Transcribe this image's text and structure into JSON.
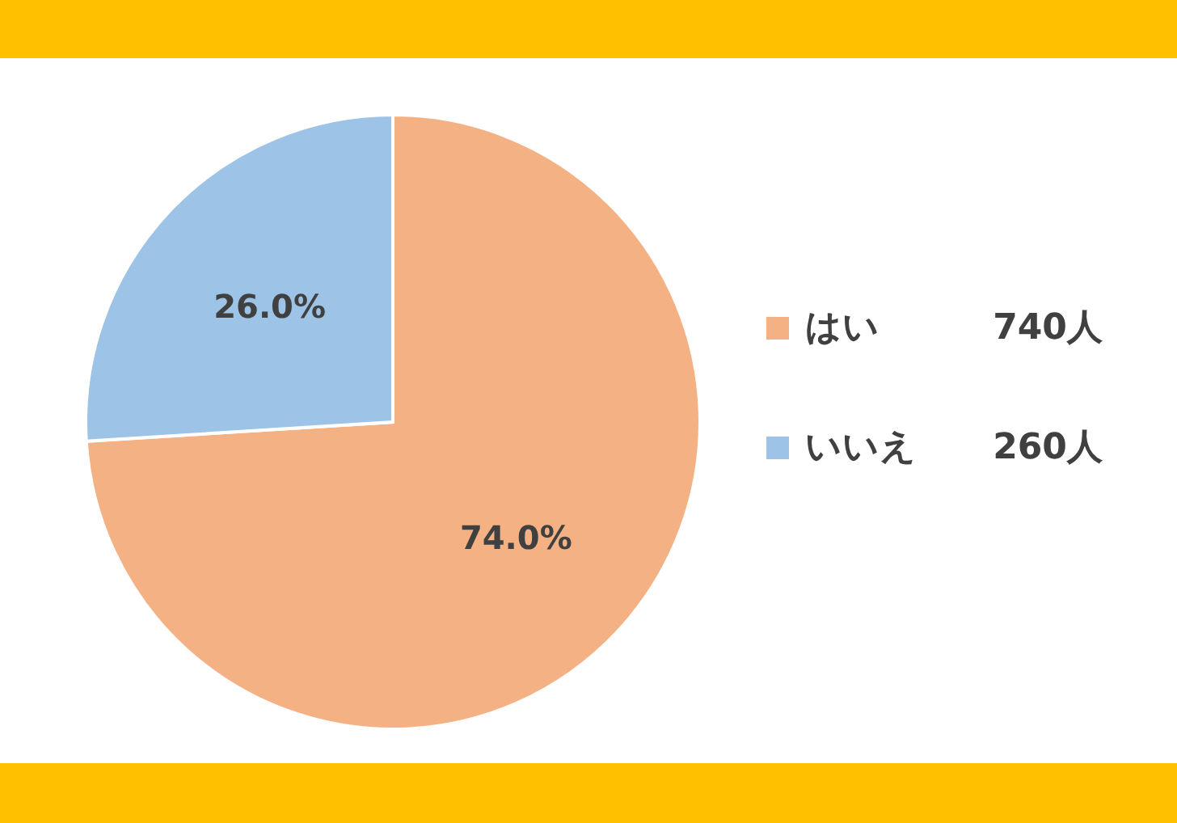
{
  "chart_data": {
    "type": "pie",
    "categories": [
      "はい",
      "いいえ"
    ],
    "values": [
      74.0,
      26.0
    ],
    "colors": [
      "#f4b183",
      "#9dc3e6"
    ],
    "value_labels": [
      "74.0%",
      "26.0%"
    ],
    "annotations": [
      "740人",
      "260人"
    ],
    "legend": "right"
  }
}
